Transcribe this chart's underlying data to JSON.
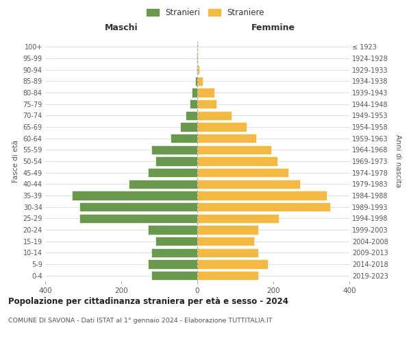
{
  "age_groups": [
    "0-4",
    "5-9",
    "10-14",
    "15-19",
    "20-24",
    "25-29",
    "30-34",
    "35-39",
    "40-44",
    "45-49",
    "50-54",
    "55-59",
    "60-64",
    "65-69",
    "70-74",
    "75-79",
    "80-84",
    "85-89",
    "90-94",
    "95-99",
    "100+"
  ],
  "birth_years": [
    "2019-2023",
    "2014-2018",
    "2009-2013",
    "2004-2008",
    "1999-2003",
    "1994-1998",
    "1989-1993",
    "1984-1988",
    "1979-1983",
    "1974-1978",
    "1969-1973",
    "1964-1968",
    "1959-1963",
    "1954-1958",
    "1949-1953",
    "1944-1948",
    "1939-1943",
    "1934-1938",
    "1929-1933",
    "1924-1928",
    "≤ 1923"
  ],
  "males": [
    120,
    130,
    120,
    110,
    130,
    310,
    310,
    330,
    180,
    130,
    110,
    120,
    70,
    45,
    30,
    20,
    15,
    5,
    2,
    1,
    0
  ],
  "females": [
    160,
    185,
    160,
    150,
    160,
    215,
    350,
    340,
    270,
    240,
    210,
    195,
    155,
    130,
    90,
    50,
    45,
    15,
    5,
    2,
    1
  ],
  "male_color": "#6a994e",
  "female_color": "#f4b942",
  "grid_color": "#d0d0d0",
  "title": "Popolazione per cittadinanza straniera per età e sesso - 2024",
  "subtitle": "COMUNE DI SAVONA - Dati ISTAT al 1° gennaio 2024 - Elaborazione TUTTITALIA.IT",
  "xlabel_left": "Maschi",
  "xlabel_right": "Femmine",
  "ylabel_left": "Fasce di età",
  "ylabel_right": "Anni di nascita",
  "legend_male": "Stranieri",
  "legend_female": "Straniere",
  "xlim": 400,
  "dashed_line_color": "#aaaaaa"
}
